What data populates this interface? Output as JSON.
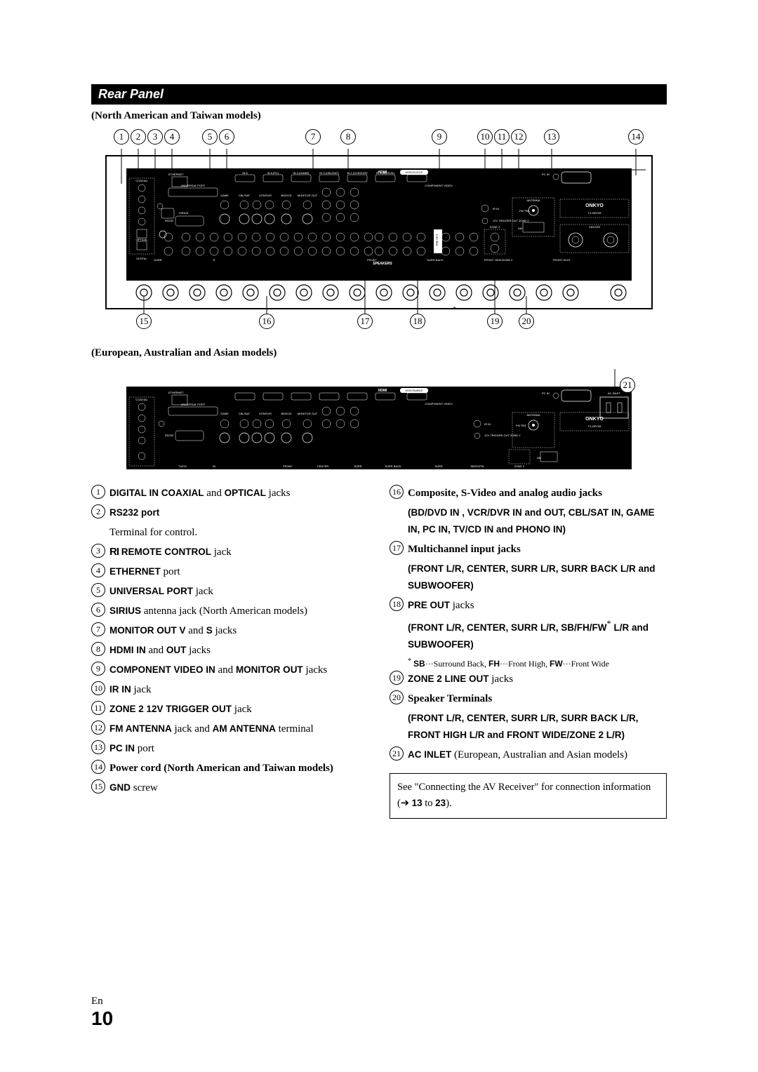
{
  "section_title": "Rear Panel",
  "model_caption_top": "(North American and Taiwan models)",
  "model_caption_bottom": "(European, Australian and Asian models)",
  "callouts_top": [
    "1",
    "2",
    "3",
    "4",
    "5",
    "6",
    "7",
    "8",
    "9",
    "10",
    "11",
    "12",
    "13",
    "14"
  ],
  "callouts_bottom_top": [
    "15",
    "16",
    "17",
    "18",
    "19",
    "20"
  ],
  "callout_side": "21",
  "diagram_labels": {
    "ethernet": "ETHERNET",
    "universal_port": "UNIVERSAL PORT",
    "hdmi": "HDMI",
    "assignable": "ASSIGNABLE",
    "coaxial": "COAXIAL",
    "optical": "OPTICAL",
    "digital": "DIGITAL",
    "sirius": "SIRIUS",
    "rs232": "RS232",
    "game": "GAME",
    "cbl_sat": "CBL/SAT",
    "vcr_dvr": "VCR/DVR",
    "bd_dvd": "BD/DVD",
    "monitor_out": "MONITOR OUT",
    "component_video": "COMPONENT VIDEO",
    "pc_in": "PC IN",
    "antenna": "ANTENNA",
    "onkyo": "ONKYO",
    "model": "TX-NR708",
    "fm": "FM 75Ω",
    "am": "AM",
    "ir_in": "IR IN",
    "trigger": "12V TRIGGER OUT ZONE 2",
    "pre_out": "PRE OUT",
    "zone2": "ZONE 2",
    "center": "CENTER",
    "front": "FRONT",
    "surr": "SURR",
    "surr_back": "SURR BACK",
    "subwoofer": "SUBWOOFER",
    "sb_fh_fw": "SB/FH/FW",
    "front_high": "FRONT HIGH",
    "front_wide": "FRONT WIDE/ZONE 2",
    "ac_inlet": "AC INLET",
    "speakers": "SPEAKERS",
    "in": "IN",
    "out": "OUT",
    "l": "L",
    "r": "R",
    "tv_cd": "TV/CD",
    "phono": "PHONO",
    "gnd": "GND",
    "hdmi_ports": [
      "IN 6",
      "IN 5 (PC)",
      "IN 4 (GAME)",
      "IN 3 (CBL/SAT)",
      "IN 2 (VCR/DVR)",
      "IN 1 (BD/DVD)",
      "OUT"
    ],
    "comp_ports": [
      "IN1 CBL/SAT",
      "IN2 BD/DVD",
      "MONITOR OUT"
    ]
  },
  "list_left": [
    {
      "n": "1",
      "bold": "DIGITAL IN COAXIAL",
      "tail": " and ",
      "bold2": "OPTICAL",
      "tail2": " jacks"
    },
    {
      "n": "2",
      "bold": "RS232 port",
      "sub": "Terminal for control."
    },
    {
      "n": "3",
      "ri": true,
      "bold": " REMOTE CONTROL",
      "tail": " jack"
    },
    {
      "n": "4",
      "bold": "ETHERNET",
      "tail": " port"
    },
    {
      "n": "5",
      "bold": "UNIVERSAL PORT",
      "tail": " jack"
    },
    {
      "n": "6",
      "bold": "SIRIUS",
      "tail": " antenna jack (North American models)"
    },
    {
      "n": "7",
      "bold": "MONITOR OUT V",
      "tail": " and ",
      "bold2": "S",
      "tail2": " jacks"
    },
    {
      "n": "8",
      "bold": "HDMI IN",
      "tail": " and ",
      "bold2": "OUT",
      "tail2": " jacks"
    },
    {
      "n": "9",
      "bold": "COMPONENT VIDEO IN",
      "tail": " and ",
      "bold2": "MONITOR OUT",
      "tail2": " jacks"
    },
    {
      "n": "10",
      "bold": "IR IN",
      "tail": " jack"
    },
    {
      "n": "11",
      "bold": "ZONE 2 12V TRIGGER OUT",
      "tail": " jack"
    },
    {
      "n": "12",
      "bold": "FM ANTENNA",
      "tail": " jack and ",
      "bold2": "AM ANTENNA",
      "tail2": " terminal"
    },
    {
      "n": "13",
      "bold": "PC IN",
      "tail": " port"
    },
    {
      "n": "14",
      "plain": "Power cord (North American and Taiwan models)"
    },
    {
      "n": "15",
      "bold": "GND",
      "tail": " screw"
    }
  ],
  "list_right": [
    {
      "n": "16",
      "plain": "Composite, S-Video and analog audio jacks",
      "detail": "(BD/DVD IN , VCR/DVR IN and OUT, CBL/SAT IN, GAME IN, PC IN, TV/CD IN and PHONO IN)"
    },
    {
      "n": "17",
      "plain": "Multichannel input jacks",
      "detail": "(FRONT L/R, CENTER, SURR L/R, SURR BACK L/R and SUBWOOFER)"
    },
    {
      "n": "18",
      "bold": "PRE OUT",
      "tail": " jacks",
      "detail": "(FRONT L/R, CENTER, SURR L/R, SB/FH/FW",
      "star": "*",
      "detail2": " L/R and SUBWOOFER)",
      "footnote_star": "*",
      "footnote": " SB···Surround Back, FH···Front High, FW···Front Wide"
    },
    {
      "n": "19",
      "bold": "ZONE 2 LINE OUT",
      "tail": " jacks"
    },
    {
      "n": "20",
      "plain": "Speaker Terminals",
      "detail": "(FRONT L/R, CENTER, SURR L/R, SURR BACK L/R, FRONT HIGH L/R and FRONT WIDE/ZONE 2 L/R)"
    },
    {
      "n": "21",
      "bold": "AC INLET",
      "tail": " (European, Australian and Asian models)"
    }
  ],
  "info_box": {
    "pre": "See \"Connecting the AV Receiver\" for connection information (",
    "arrow": "➔",
    "range_bold_1": "13",
    "to": " to ",
    "range_bold_2": "23",
    "post": ")."
  },
  "page": {
    "lang": "En",
    "num": "10"
  },
  "colors": {
    "black": "#000000",
    "white": "#ffffff",
    "panel": "#1a1a1a",
    "grey": "#efefef"
  }
}
